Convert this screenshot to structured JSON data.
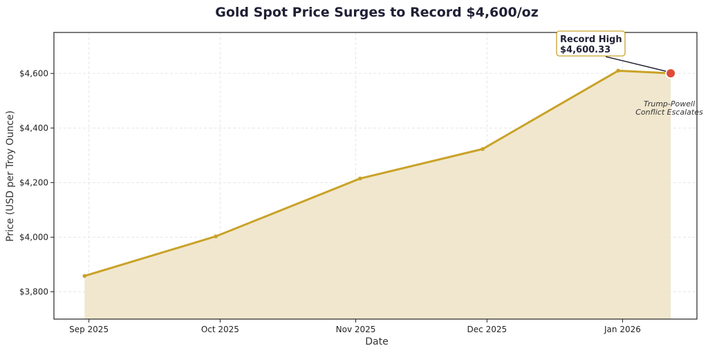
{
  "chart_data": {
    "type": "area",
    "title": "Gold Spot Price Surges to Record $4,600/oz",
    "xlabel": "Date",
    "ylabel": "Price (USD per Troy Ounce)",
    "ylim": [
      3700,
      4750
    ],
    "xlim": [
      "2025-08-24",
      "2026-01-18"
    ],
    "grid": true,
    "x_ticks": [
      {
        "date": "2025-09-01",
        "label": "Sep 2025"
      },
      {
        "date": "2025-10-01",
        "label": "Oct 2025"
      },
      {
        "date": "2025-11-01",
        "label": "Nov 2025"
      },
      {
        "date": "2025-12-01",
        "label": "Dec 2025"
      },
      {
        "date": "2026-01-01",
        "label": "Jan 2026"
      }
    ],
    "y_ticks": [
      {
        "value": 3800,
        "label": "$3,800"
      },
      {
        "value": 4000,
        "label": "$4,000"
      },
      {
        "value": 4200,
        "label": "$4,200"
      },
      {
        "value": 4400,
        "label": "$4,400"
      },
      {
        "value": 4600,
        "label": "$4,600"
      }
    ],
    "series": [
      {
        "x": [
          "2025-08-31",
          "2025-09-30",
          "2025-11-02",
          "2025-11-30",
          "2025-12-31",
          "2026-01-12"
        ],
        "values": [
          3858,
          4003,
          4215,
          4323,
          4610,
          4600.33
        ],
        "color": "#c9a227",
        "fill_color": "#efe6cb"
      }
    ],
    "highlight": {
      "date": "2026-01-12",
      "value": 4600.33,
      "color": "#e04b3a"
    },
    "annotations": [
      {
        "line1": "Record High",
        "line2": "$4,600.33",
        "target_date": "2026-01-12",
        "target_value": 4600.33
      },
      {
        "line1": "Trump-Powell",
        "line2": "Conflict Escalates"
      }
    ]
  }
}
